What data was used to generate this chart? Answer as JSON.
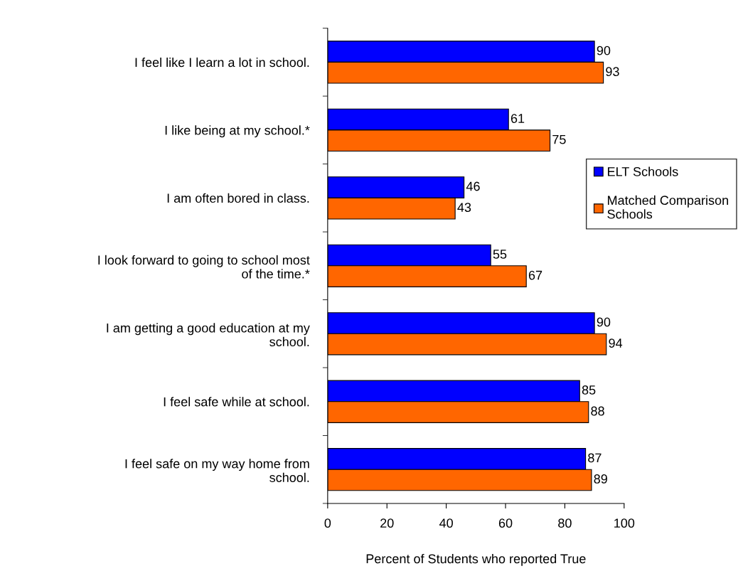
{
  "chart_data": {
    "type": "bar",
    "orientation": "horizontal",
    "xlabel": "Percent of Students who reported True",
    "categories": [
      "I feel like I learn a lot in school.",
      "I like being at my school.*",
      "I am often bored in class.",
      "I look forward to going to school most\nof the time.*",
      "I am getting a good education at my\nschool.",
      "I feel safe while at school.",
      "I feel safe on my way home from\nschool."
    ],
    "series": [
      {
        "name": "ELT Schools",
        "color": "#0000ff",
        "values": [
          90,
          61,
          46,
          55,
          90,
          85,
          87
        ]
      },
      {
        "name": "Matched Comparison\nSchools",
        "color": "#ff6600",
        "values": [
          93,
          75,
          43,
          67,
          94,
          88,
          89
        ]
      }
    ],
    "xlim": [
      0,
      100
    ],
    "xticks": [
      0,
      20,
      40,
      60,
      80,
      100
    ],
    "data_labels": true,
    "legend": "right",
    "grid": false
  }
}
